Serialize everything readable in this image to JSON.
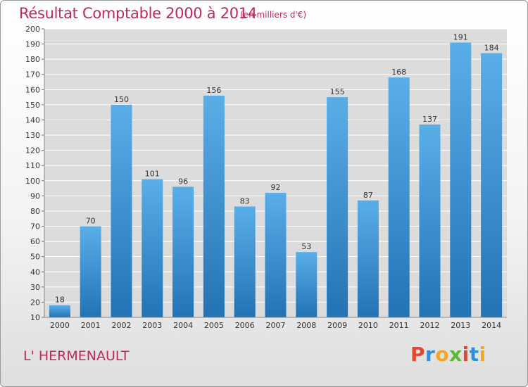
{
  "page": {
    "title": "Résultat Comptable 2000 à 2014",
    "subtitle": "(en milliers d'€)",
    "commune": "L' HERMENAULT",
    "logo_text": "Proxiti",
    "logo_colors": [
      "#e8452c",
      "#2f8fd8",
      "#f5a623",
      "#5cb82f",
      "#e8452c",
      "#2f8fd8",
      "#f5a623"
    ]
  },
  "chart_data": {
    "type": "bar",
    "title": "Résultat Comptable 2000 à 2014",
    "subtitle": "(en milliers d'€)",
    "categories": [
      "2000",
      "2001",
      "2002",
      "2003",
      "2004",
      "2005",
      "2006",
      "2007",
      "2008",
      "2009",
      "2010",
      "2011",
      "2012",
      "2013",
      "2014"
    ],
    "values": [
      18,
      70,
      150,
      101,
      96,
      156,
      83,
      92,
      53,
      155,
      87,
      168,
      137,
      191,
      184
    ],
    "ylim": [
      10,
      200
    ],
    "yticks": [
      10,
      20,
      30,
      40,
      50,
      60,
      70,
      80,
      90,
      100,
      110,
      120,
      130,
      140,
      150,
      160,
      170,
      180,
      190,
      200
    ],
    "grid": true,
    "legend": "none",
    "bar_color_top": "#5aaee8",
    "bar_color_bottom": "#2273b5",
    "grid_color": "#ffffff"
  }
}
